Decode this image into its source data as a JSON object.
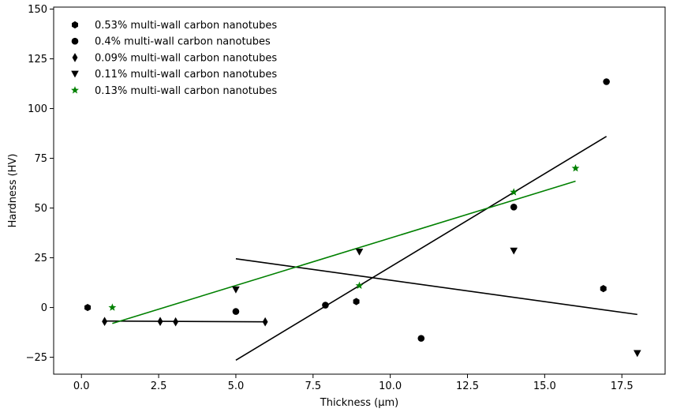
{
  "chart_data": {
    "type": "scatter",
    "xlabel": "Thickness (μm)",
    "ylabel": "Hardness (HV)",
    "xlim": [
      -0.9,
      18.9
    ],
    "ylim": [
      -33.5,
      151
    ],
    "xticks": [
      0.0,
      2.5,
      5.0,
      7.5,
      10.0,
      12.5,
      15.0,
      17.5
    ],
    "xtick_labels": [
      "0.0",
      "2.5",
      "5.0",
      "7.5",
      "10.0",
      "12.5",
      "15.0",
      "17.5"
    ],
    "yticks": [
      -25,
      0,
      25,
      50,
      75,
      100,
      125,
      150
    ],
    "ytick_labels": [
      "−25",
      "0",
      "25",
      "50",
      "75",
      "100",
      "125",
      "150"
    ],
    "grid": false,
    "legend_position": "top-left",
    "series": [
      {
        "name": "0.53% multi-wall carbon nanotubes",
        "marker": "hexagon",
        "color": "#000000",
        "points": [
          [
            0.2,
            0.0
          ],
          [
            8.9,
            3.0
          ],
          [
            16.9,
            9.5
          ]
        ]
      },
      {
        "name": "0.4% multi-wall carbon nanotubes",
        "marker": "circle",
        "color": "#000000",
        "points": [
          [
            5.0,
            -2.0
          ],
          [
            7.9,
            1.2
          ],
          [
            11.0,
            -15.5
          ],
          [
            14.0,
            50.5
          ],
          [
            17.0,
            113.5
          ]
        ]
      },
      {
        "name": "0.09% multi-wall carbon nanotubes",
        "marker": "thin-diamond",
        "color": "#000000",
        "points": [
          [
            0.75,
            -7.0
          ],
          [
            2.55,
            -7.0
          ],
          [
            3.05,
            -7.2
          ],
          [
            5.95,
            -7.2
          ]
        ]
      },
      {
        "name": "0.11% multi-wall carbon nanotubes",
        "marker": "triangle-down",
        "color": "#000000",
        "points": [
          [
            5.0,
            9.0
          ],
          [
            9.0,
            28.0
          ],
          [
            14.0,
            28.5
          ],
          [
            18.0,
            -23.0
          ]
        ]
      },
      {
        "name": "0.13% multi-wall carbon nanotubes",
        "marker": "star",
        "color": "#008000",
        "points": [
          [
            1.0,
            0.0
          ],
          [
            9.0,
            11.0
          ],
          [
            14.0,
            58.0
          ],
          [
            16.0,
            70.0
          ]
        ]
      }
    ],
    "fit_lines": [
      {
        "color": "#000000",
        "x": [
          5.0,
          17.0
        ],
        "y": [
          -26.5,
          86.0
        ]
      },
      {
        "color": "#000000",
        "x": [
          0.75,
          5.95
        ],
        "y": [
          -6.8,
          -7.2
        ]
      },
      {
        "color": "#000000",
        "x": [
          5.0,
          18.0
        ],
        "y": [
          24.5,
          -3.5
        ]
      },
      {
        "color": "#008000",
        "x": [
          1.0,
          16.0
        ],
        "y": [
          -8.0,
          63.5
        ]
      }
    ]
  }
}
